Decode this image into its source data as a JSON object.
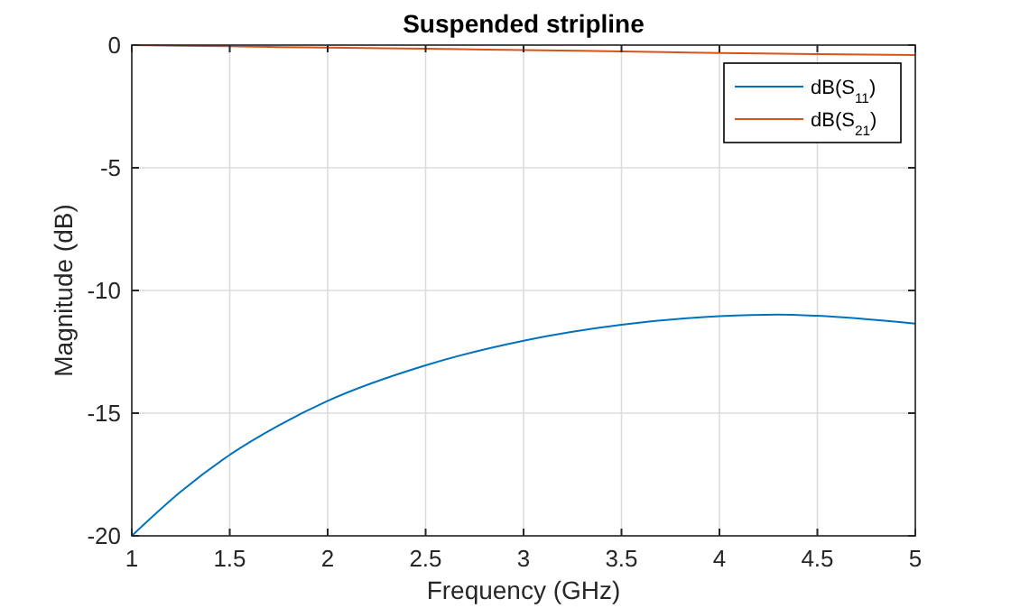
{
  "chart_data": {
    "type": "line",
    "title": "Suspended stripline",
    "xlabel": "Frequency (GHz)",
    "ylabel": "Magnitude (dB)",
    "x": [
      1,
      1.25,
      1.5,
      1.75,
      2,
      2.5,
      3,
      3.5,
      4,
      4.3,
      4.5,
      5
    ],
    "series": [
      {
        "name": "dB(S$_{11}$)",
        "color": "#0072bd",
        "values": [
          -20,
          -18.2,
          -16.7,
          -15.5,
          -14.5,
          -13.05,
          -12.05,
          -11.4,
          -11.05,
          -10.98,
          -11.03,
          -11.35
        ]
      },
      {
        "name": "dB(S$_{21}$)",
        "color": "#d95319",
        "values": [
          0,
          -0.03,
          -0.05,
          -0.08,
          -0.1,
          -0.15,
          -0.2,
          -0.26,
          -0.32,
          -0.35,
          -0.37,
          -0.4
        ]
      }
    ],
    "xlim": [
      1,
      5
    ],
    "xticks": [
      1,
      1.5,
      2,
      2.5,
      3,
      3.5,
      4,
      4.5,
      5
    ],
    "ylim": [
      -20,
      0
    ],
    "yticks": [
      -20,
      -15,
      -10,
      -5,
      0
    ],
    "grid": true,
    "legend": "top right",
    "marker": "none",
    "line_style": "solid"
  }
}
